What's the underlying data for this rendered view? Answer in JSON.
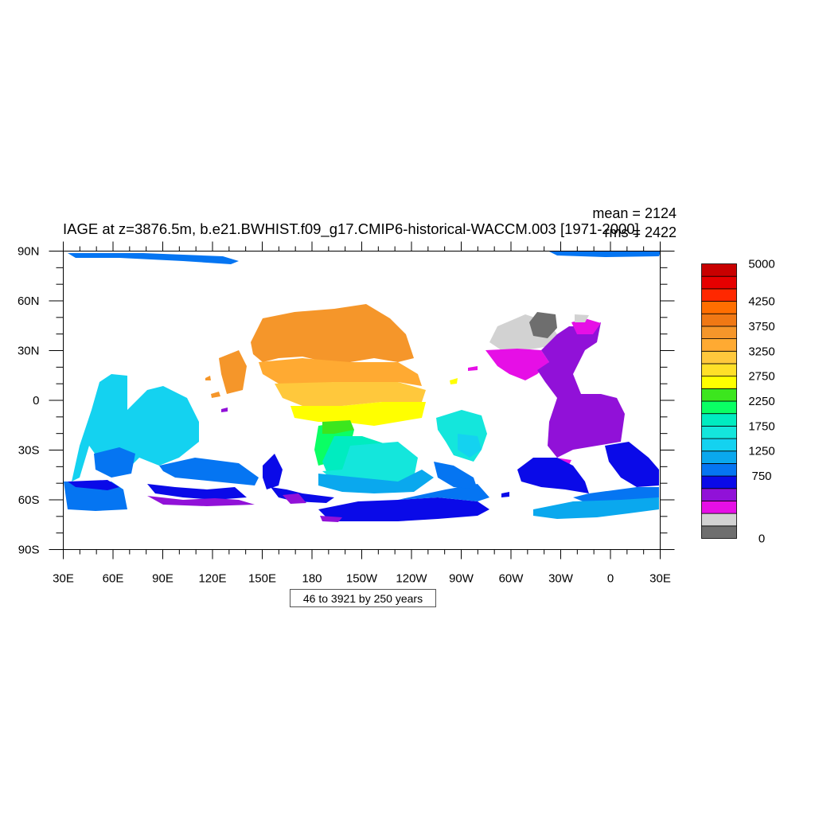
{
  "title": "IAGE at z=3876.5m, b.e21.BWHIST.f09_g17.CMIP6-historical-WACCM.003 [1971-2000]",
  "stats": {
    "mean": "mean = 2124",
    "rms": "rms = 2422"
  },
  "x_ticks": [
    "30E",
    "60E",
    "90E",
    "120E",
    "150E",
    "180",
    "150W",
    "120W",
    "90W",
    "60W",
    "30W",
    "0",
    "30E"
  ],
  "y_ticks": [
    "90N",
    "60N",
    "30N",
    "0",
    "30S",
    "60S",
    "90S"
  ],
  "contour_info": "46 to 3921 by 250 years",
  "colorbar": {
    "colors": [
      "#6e6e6e",
      "#d2d2d2",
      "#e60fe6",
      "#9111d8",
      "#0a0ae8",
      "#0575f2",
      "#0aa8ee",
      "#14d2f0",
      "#14e6dc",
      "#00ecc0",
      "#0aff64",
      "#3ce61e",
      "#ffff00",
      "#ffe028",
      "#ffc83c",
      "#ffaa32",
      "#f5962a",
      "#f07814",
      "#ff6e00",
      "#ff2800",
      "#e60000",
      "#c80000"
    ],
    "labels": [
      {
        "text": "5000",
        "boundary": 22
      },
      {
        "text": "4250",
        "boundary": 19
      },
      {
        "text": "3750",
        "boundary": 17
      },
      {
        "text": "3250",
        "boundary": 15
      },
      {
        "text": "2750",
        "boundary": 13
      },
      {
        "text": "2250",
        "boundary": 11
      },
      {
        "text": "1750",
        "boundary": 9
      },
      {
        "text": "1250",
        "boundary": 7
      },
      {
        "text": "750",
        "boundary": 5
      },
      {
        "text": "0",
        "boundary": 0
      }
    ]
  }
}
